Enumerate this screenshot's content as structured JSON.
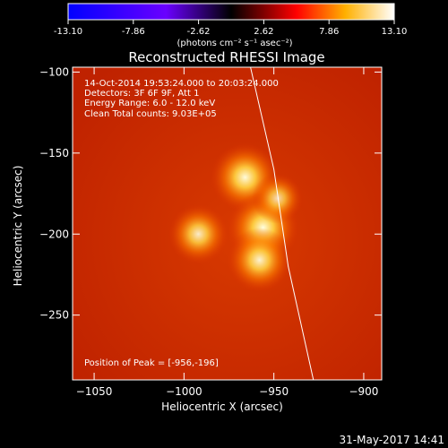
{
  "chart_data": {
    "type": "heatmap",
    "title": "Reconstructed RHESSI Image",
    "xlabel": "Heliocentric X (arcsec)",
    "ylabel": "Heliocentric Y (arcsec)",
    "x_ticks": [
      -1050,
      -1000,
      -950,
      -900
    ],
    "y_ticks": [
      -100,
      -150,
      -200,
      -250
    ],
    "xlim": [
      -1062,
      -890
    ],
    "ylim": [
      -290,
      -97
    ],
    "colorbar": {
      "min": -13.1,
      "max": 13.1,
      "tick_labels": [
        "-13.10",
        "-7.86",
        "-2.62",
        "2.62",
        "7.86",
        "13.10"
      ],
      "units": "(photons cm⁻² s⁻¹ asec⁻²)",
      "colormap": [
        "#0000ff",
        "#6a00ff",
        "#000000",
        "#ff0000",
        "#ffb000",
        "#ffffff"
      ]
    },
    "annotations": [
      "14-Oct-2014 19:53:24.000 to 20:03:24.000",
      "Detectors: 3F 6F 9F, Att 1",
      "Energy Range: 6.0 - 12.0 keV",
      "Clean    Total counts: 9.03E+05"
    ],
    "peak_label": "Position of Peak = [-956,-196]",
    "sources": [
      {
        "x": -966,
        "y": -165,
        "intensity": 0.95
      },
      {
        "x": -956,
        "y": -196,
        "intensity": 1.0
      },
      {
        "x": -958,
        "y": -216,
        "intensity": 0.85
      },
      {
        "x": -992,
        "y": -200,
        "intensity": 0.75
      },
      {
        "x": -948,
        "y": -178,
        "intensity": 0.55
      }
    ],
    "limb_curve": [
      [
        -963,
        -97
      ],
      [
        -950,
        -160
      ],
      [
        -942,
        -220
      ],
      [
        -928,
        -290
      ]
    ]
  },
  "footer": {
    "timestamp": "31-May-2017 14:41"
  }
}
